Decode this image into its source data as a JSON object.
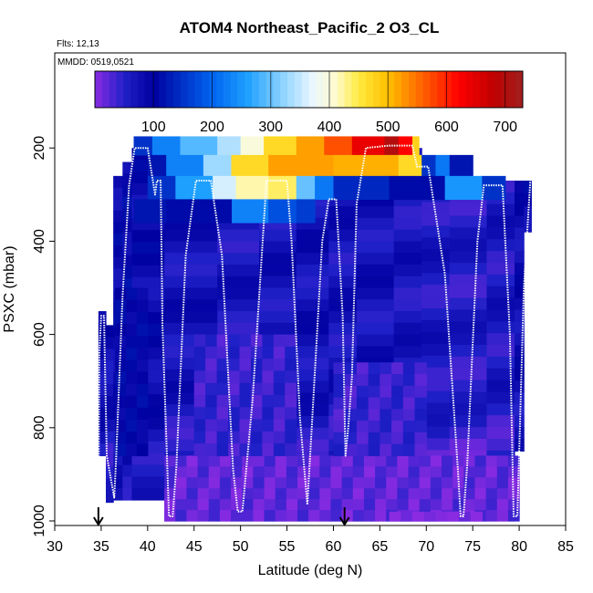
{
  "chart_data": {
    "type": "heatmap",
    "title": "ATOM4 Northeast_Pacific_2 O3_CL",
    "flights_label": "Flts: 12,13",
    "date_label": "MMDD: 0519,0521",
    "xlabel": "Latitude (deg N)",
    "ylabel": "PSXC (mbar)",
    "xlim": [
      30,
      85
    ],
    "ylim": [
      1000,
      0
    ],
    "xticks": [
      30,
      35,
      40,
      45,
      50,
      55,
      60,
      65,
      70,
      75,
      80,
      85
    ],
    "yticks": [
      200,
      400,
      600,
      800,
      1000
    ],
    "colorbar": {
      "range": [
        0,
        730
      ],
      "ticks": [
        100,
        200,
        300,
        400,
        500,
        600,
        700
      ],
      "stops": [
        {
          "v": 0,
          "c": "#8a2be2"
        },
        {
          "v": 50,
          "c": "#2020c8"
        },
        {
          "v": 100,
          "c": "#0000a0"
        },
        {
          "v": 200,
          "c": "#0064f0"
        },
        {
          "v": 260,
          "c": "#1ea0ff"
        },
        {
          "v": 320,
          "c": "#8cd2ff"
        },
        {
          "v": 370,
          "c": "#e8f6ff"
        },
        {
          "v": 410,
          "c": "#fffbd0"
        },
        {
          "v": 450,
          "c": "#ffea40"
        },
        {
          "v": 500,
          "c": "#ffc000"
        },
        {
          "v": 560,
          "c": "#ff6000"
        },
        {
          "v": 620,
          "c": "#ff0000"
        },
        {
          "v": 680,
          "c": "#c00000"
        },
        {
          "v": 730,
          "c": "#a02020"
        }
      ]
    },
    "markers_lat": [
      34.7,
      61.2
    ],
    "profile_columns": [
      {
        "lat": [
          34.7,
          35.5
        ],
        "ptop": 550,
        "pbot": 860,
        "v": 80
      },
      {
        "lat": [
          35.5,
          36.3
        ],
        "ptop": 580,
        "pbot": 960,
        "v": 75
      },
      {
        "lat": [
          36.3,
          37.3
        ],
        "ptop": 260,
        "pbot": 955,
        "v": 90
      },
      {
        "lat": [
          37.3,
          38.3
        ],
        "ptop": 230,
        "pbot": 955,
        "v": 95
      },
      {
        "lat": [
          38.3,
          41.8
        ],
        "ptop": 200,
        "pbot": 955,
        "v": 85
      },
      {
        "lat": [
          41.8,
          47.5
        ],
        "ptop": 200,
        "pbot": 1000,
        "v": 70
      },
      {
        "lat": [
          47.5,
          52.0
        ],
        "ptop": 200,
        "pbot": 1000,
        "v": 65
      },
      {
        "lat": [
          52.0,
          56.0
        ],
        "ptop": 200,
        "pbot": 1000,
        "v": 70
      },
      {
        "lat": [
          56.0,
          59.5
        ],
        "ptop": 200,
        "pbot": 1000,
        "v": 72
      },
      {
        "lat": [
          59.5,
          62.5
        ],
        "ptop": 200,
        "pbot": 1000,
        "v": 68
      },
      {
        "lat": [
          62.5,
          66.5
        ],
        "ptop": 200,
        "pbot": 1000,
        "v": 70
      },
      {
        "lat": [
          66.5,
          69.5
        ],
        "ptop": 200,
        "pbot": 1000,
        "v": 65
      },
      {
        "lat": [
          69.5,
          72.5
        ],
        "ptop": 240,
        "pbot": 1000,
        "v": 60
      },
      {
        "lat": [
          72.5,
          76.5
        ],
        "ptop": 270,
        "pbot": 1000,
        "v": 55
      },
      {
        "lat": [
          76.5,
          79.5
        ],
        "ptop": 270,
        "pbot": 1000,
        "v": 60
      },
      {
        "lat": [
          79.5,
          80.5
        ],
        "ptop": 270,
        "pbot": 850,
        "v": 80
      },
      {
        "lat": [
          80.5,
          81.3
        ],
        "ptop": 270,
        "pbot": 380,
        "v": 90
      }
    ],
    "ozone_layer": [
      {
        "lat": [
          38.5,
          40.5
        ],
        "p": [
          175,
          215
        ],
        "v": 150
      },
      {
        "lat": [
          40.5,
          43.5
        ],
        "p": [
          175,
          215
        ],
        "v": 230
      },
      {
        "lat": [
          43.5,
          47.5
        ],
        "p": [
          175,
          215
        ],
        "v": 290
      },
      {
        "lat": [
          47.5,
          50.0
        ],
        "p": [
          175,
          215
        ],
        "v": 340
      },
      {
        "lat": [
          50.0,
          52.5
        ],
        "p": [
          175,
          215
        ],
        "v": 400
      },
      {
        "lat": [
          52.5,
          56.0
        ],
        "p": [
          175,
          215
        ],
        "v": 470
      },
      {
        "lat": [
          56.0,
          59.0
        ],
        "p": [
          175,
          215
        ],
        "v": 520
      },
      {
        "lat": [
          59.0,
          62.0
        ],
        "p": [
          175,
          215
        ],
        "v": 570
      },
      {
        "lat": [
          62.0,
          65.5
        ],
        "p": [
          175,
          215
        ],
        "v": 640
      },
      {
        "lat": [
          65.5,
          67.0
        ],
        "p": [
          175,
          215
        ],
        "v": 700
      },
      {
        "lat": [
          67.0,
          68.5
        ],
        "p": [
          175,
          215
        ],
        "v": 620
      },
      {
        "lat": [
          68.5,
          69.2
        ],
        "p": [
          175,
          215
        ],
        "v": 480
      },
      {
        "lat": [
          40.0,
          42.0
        ],
        "p": [
          215,
          260
        ],
        "v": 120
      },
      {
        "lat": [
          42.0,
          46.0
        ],
        "p": [
          215,
          260
        ],
        "v": 230
      },
      {
        "lat": [
          46.0,
          49.0
        ],
        "p": [
          215,
          260
        ],
        "v": 330
      },
      {
        "lat": [
          49.0,
          53.0
        ],
        "p": [
          215,
          260
        ],
        "v": 470
      },
      {
        "lat": [
          53.0,
          60.0
        ],
        "p": [
          215,
          260
        ],
        "v": 520
      },
      {
        "lat": [
          60.0,
          67.0
        ],
        "p": [
          215,
          260
        ],
        "v": 510
      },
      {
        "lat": [
          67.0,
          69.5
        ],
        "p": [
          215,
          260
        ],
        "v": 470
      },
      {
        "lat": [
          69.5,
          71.0
        ],
        "p": [
          215,
          260
        ],
        "v": 150
      },
      {
        "lat": [
          71.0,
          72.5
        ],
        "p": [
          215,
          260
        ],
        "v": 220
      },
      {
        "lat": [
          72.5,
          75.0
        ],
        "p": [
          215,
          260
        ],
        "v": 120
      },
      {
        "lat": [
          40.0,
          43.0
        ],
        "p": [
          260,
          310
        ],
        "v": 150
      },
      {
        "lat": [
          43.0,
          47.0
        ],
        "p": [
          260,
          310
        ],
        "v": 260
      },
      {
        "lat": [
          47.0,
          49.5
        ],
        "p": [
          260,
          310
        ],
        "v": 360
      },
      {
        "lat": [
          49.5,
          53.0
        ],
        "p": [
          260,
          310
        ],
        "v": 420
      },
      {
        "lat": [
          53.0,
          56.0
        ],
        "p": [
          260,
          310
        ],
        "v": 440
      },
      {
        "lat": [
          56.0,
          58.0
        ],
        "p": [
          260,
          310
        ],
        "v": 300
      },
      {
        "lat": [
          58.0,
          60.0
        ],
        "p": [
          260,
          310
        ],
        "v": 220
      },
      {
        "lat": [
          60.0,
          66.0
        ],
        "p": [
          260,
          310
        ],
        "v": 140
      },
      {
        "lat": [
          66.0,
          72.0
        ],
        "p": [
          260,
          310
        ],
        "v": 110
      },
      {
        "lat": [
          72.0,
          76.0
        ],
        "p": [
          260,
          310
        ],
        "v": 250
      },
      {
        "lat": [
          76.0,
          78.5
        ],
        "p": [
          260,
          310
        ],
        "v": 150
      },
      {
        "lat": [
          49.0,
          53.0
        ],
        "p": [
          310,
          360
        ],
        "v": 230
      },
      {
        "lat": [
          53.0,
          56.0
        ],
        "p": [
          310,
          360
        ],
        "v": 180
      },
      {
        "lat": [
          56.0,
          58.0
        ],
        "p": [
          310,
          360
        ],
        "v": 160
      },
      {
        "lat": [
          38.5,
          42.0
        ],
        "p": [
          310,
          360
        ],
        "v": 120
      },
      {
        "lat": [
          42.0,
          49.0
        ],
        "p": [
          310,
          360
        ],
        "v": 110
      }
    ],
    "low_regions": [
      {
        "lat": [
          41.8,
          80.0
        ],
        "p": [
          860,
          1000
        ],
        "v": 20
      },
      {
        "lat": [
          45.0,
          56.0
        ],
        "p": [
          600,
          860
        ],
        "v": 40
      },
      {
        "lat": [
          60.0,
          70.0
        ],
        "p": [
          660,
          860
        ],
        "v": 40
      },
      {
        "lat": [
          66.0,
          76.0
        ],
        "p": [
          980,
          1000
        ],
        "v": 0
      },
      {
        "lat": [
          36.5,
          40.0
        ],
        "p": [
          500,
          860
        ],
        "v": 100
      }
    ],
    "flight_track": [
      [
        34.7,
        1000
      ],
      [
        34.8,
        640
      ],
      [
        35.0,
        560
      ],
      [
        35.3,
        560
      ],
      [
        35.6,
        860
      ],
      [
        36.4,
        950
      ],
      [
        36.6,
        870
      ],
      [
        37.3,
        520
      ],
      [
        38.0,
        280
      ],
      [
        38.6,
        200
      ],
      [
        40.0,
        200
      ],
      [
        40.8,
        300
      ],
      [
        41.0,
        270
      ],
      [
        41.4,
        270
      ],
      [
        41.6,
        580
      ],
      [
        42.3,
        990
      ],
      [
        42.7,
        990
      ],
      [
        43.1,
        880
      ],
      [
        44.1,
        430
      ],
      [
        45.2,
        270
      ],
      [
        46.8,
        270
      ],
      [
        48.0,
        430
      ],
      [
        49.2,
        890
      ],
      [
        49.7,
        980
      ],
      [
        50.2,
        980
      ],
      [
        51.3,
        740
      ],
      [
        52.8,
        270
      ],
      [
        55.0,
        270
      ],
      [
        55.5,
        400
      ],
      [
        56.4,
        780
      ],
      [
        57.2,
        965
      ],
      [
        57.7,
        790
      ],
      [
        58.8,
        400
      ],
      [
        59.5,
        310
      ],
      [
        60.3,
        310
      ],
      [
        61.0,
        560
      ],
      [
        61.3,
        860
      ],
      [
        61.6,
        800
      ],
      [
        62.0,
        690
      ],
      [
        62.5,
        320
      ],
      [
        63.5,
        200
      ],
      [
        66.0,
        195
      ],
      [
        68.5,
        195
      ],
      [
        69.0,
        240
      ],
      [
        70.2,
        240
      ],
      [
        72.0,
        470
      ],
      [
        73.4,
        890
      ],
      [
        73.7,
        990
      ],
      [
        74.0,
        990
      ],
      [
        74.4,
        880
      ],
      [
        75.5,
        400
      ],
      [
        76.2,
        280
      ],
      [
        78.2,
        280
      ],
      [
        79.0,
        600
      ],
      [
        79.4,
        990
      ],
      [
        79.8,
        990
      ],
      [
        80.5,
        500
      ],
      [
        81.2,
        270
      ]
    ]
  }
}
